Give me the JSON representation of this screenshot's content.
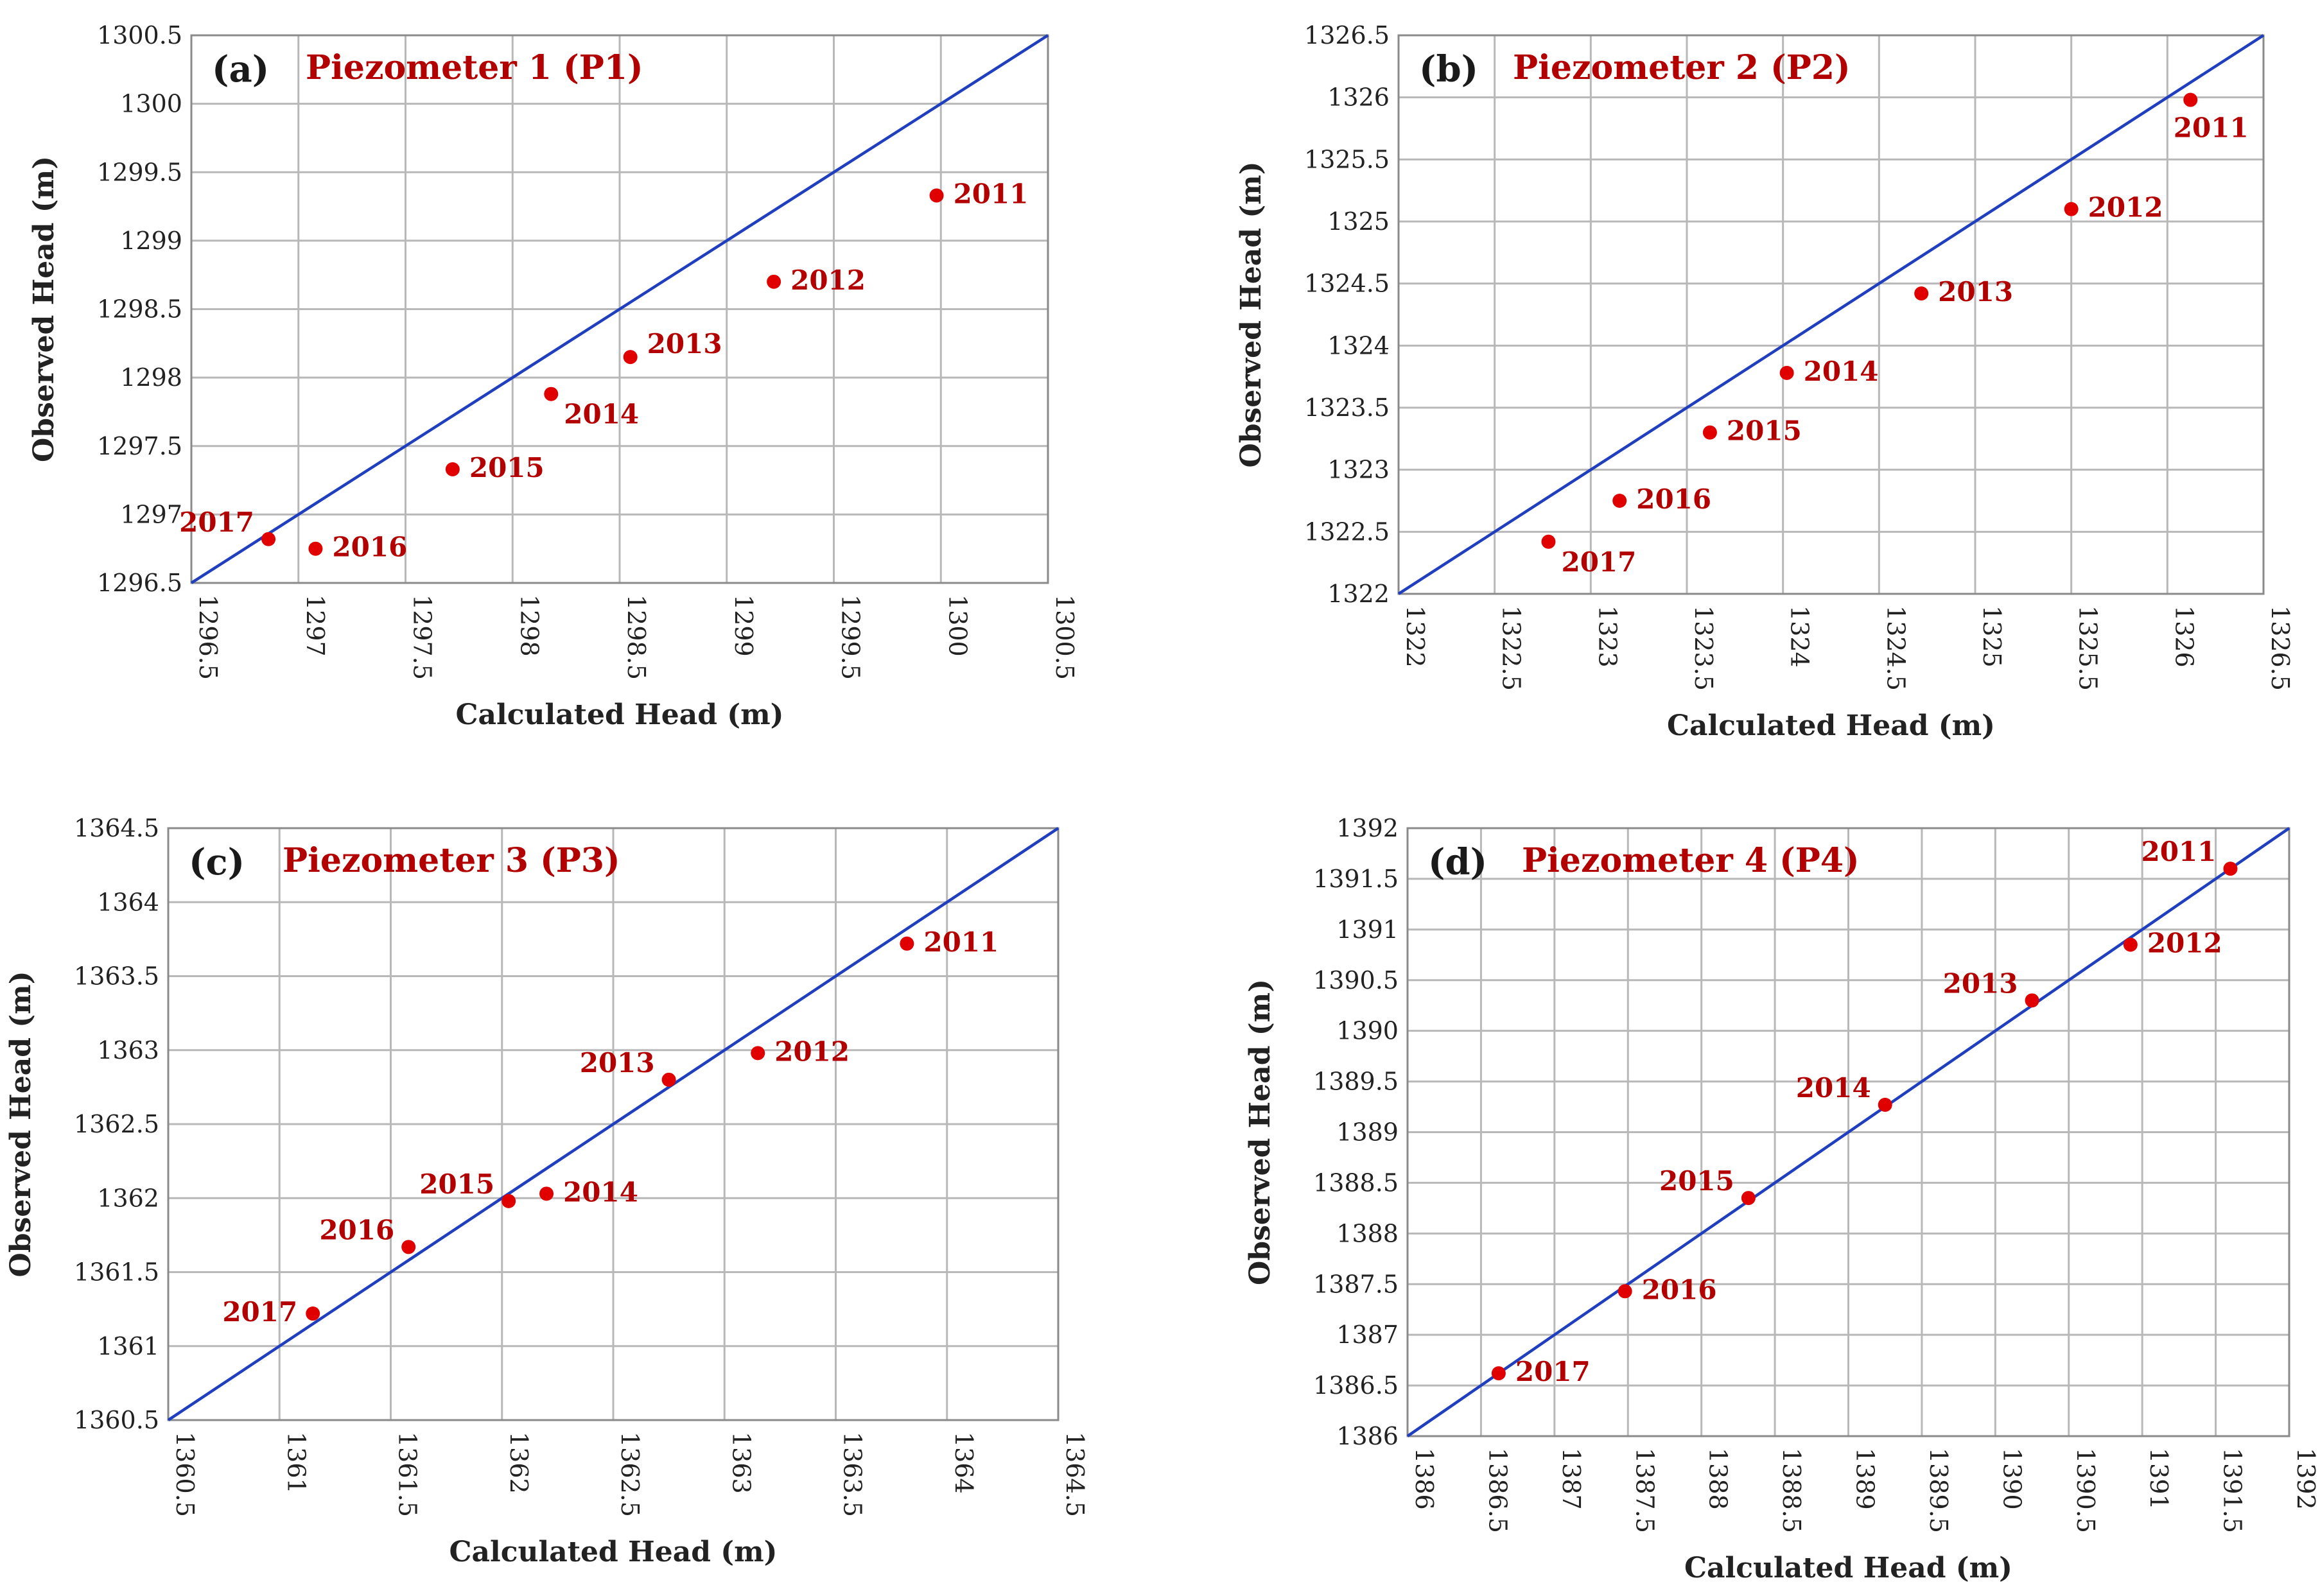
{
  "figure": {
    "colors": {
      "line": "#1f3fbf",
      "point": "#e00000",
      "title": "#b30000",
      "grid": "#b8b8b8"
    }
  },
  "chart_data": [
    {
      "type": "scatter",
      "panel": "(a)",
      "title": "Piezometer 1 (P1)",
      "xlabel": "Calculated Head (m)",
      "ylabel": "Observed Head (m)",
      "xlim": [
        1296.5,
        1300.5
      ],
      "ylim": [
        1296.5,
        1300.5
      ],
      "xticks": [
        "1296.5",
        "1297",
        "1297.5",
        "1298",
        "1298.5",
        "1299",
        "1299.5",
        "1300",
        "1300.5"
      ],
      "yticks": [
        "1296.5",
        "1297",
        "1297.5",
        "1298",
        "1298.5",
        "1299",
        "1299.5",
        "1300",
        "1300.5"
      ],
      "reference_line": "1:1",
      "points": [
        {
          "label": "2011",
          "x": 1299.98,
          "y": 1299.33,
          "pos": "right"
        },
        {
          "label": "2012",
          "x": 1299.22,
          "y": 1298.7,
          "pos": "right"
        },
        {
          "label": "2013",
          "x": 1298.55,
          "y": 1298.15,
          "pos": "right-up"
        },
        {
          "label": "2014",
          "x": 1298.18,
          "y": 1297.88,
          "pos": "right-down"
        },
        {
          "label": "2015",
          "x": 1297.72,
          "y": 1297.33,
          "pos": "right"
        },
        {
          "label": "2016",
          "x": 1297.08,
          "y": 1296.75,
          "pos": "right"
        },
        {
          "label": "2017",
          "x": 1296.86,
          "y": 1296.82,
          "pos": "left-up"
        }
      ]
    },
    {
      "type": "scatter",
      "panel": "(b)",
      "title": "Piezometer 2 (P2)",
      "xlabel": "Calculated Head (m)",
      "ylabel": "Observed Head (m)",
      "xlim": [
        1322,
        1326.5
      ],
      "ylim": [
        1322,
        1326.5
      ],
      "xticks": [
        "1322",
        "1322.5",
        "1323",
        "1323.5",
        "1324",
        "1324.5",
        "1325",
        "1325.5",
        "1326",
        "1326.5"
      ],
      "yticks": [
        "1322",
        "1322.5",
        "1323",
        "1323.5",
        "1324",
        "1324.5",
        "1325",
        "1325.5",
        "1326",
        "1326.5"
      ],
      "reference_line": "1:1",
      "points": [
        {
          "label": "2011",
          "x": 1326.12,
          "y": 1325.98,
          "pos": "below"
        },
        {
          "label": "2012",
          "x": 1325.5,
          "y": 1325.1,
          "pos": "right"
        },
        {
          "label": "2013",
          "x": 1324.72,
          "y": 1324.42,
          "pos": "right"
        },
        {
          "label": "2014",
          "x": 1324.02,
          "y": 1323.78,
          "pos": "right"
        },
        {
          "label": "2015",
          "x": 1323.62,
          "y": 1323.3,
          "pos": "right"
        },
        {
          "label": "2016",
          "x": 1323.15,
          "y": 1322.75,
          "pos": "right"
        },
        {
          "label": "2017",
          "x": 1322.78,
          "y": 1322.42,
          "pos": "right-down"
        }
      ]
    },
    {
      "type": "scatter",
      "panel": "(c)",
      "title": "Piezometer 3 (P3)",
      "xlabel": "Calculated Head (m)",
      "ylabel": "Observed Head (m)",
      "xlim": [
        1360.5,
        1364.5
      ],
      "ylim": [
        1360.5,
        1364.5
      ],
      "xticks": [
        "1360.5",
        "1361",
        "1361.5",
        "1362",
        "1362.5",
        "1363",
        "1363.5",
        "1364",
        "1364.5"
      ],
      "yticks": [
        "1360.5",
        "1361",
        "1361.5",
        "1362",
        "1362.5",
        "1363",
        "1363.5",
        "1364",
        "1364.5"
      ],
      "reference_line": "1:1",
      "points": [
        {
          "label": "2011",
          "x": 1363.82,
          "y": 1363.72,
          "pos": "right"
        },
        {
          "label": "2012",
          "x": 1363.15,
          "y": 1362.98,
          "pos": "right"
        },
        {
          "label": "2013",
          "x": 1362.75,
          "y": 1362.8,
          "pos": "left-up"
        },
        {
          "label": "2014",
          "x": 1362.2,
          "y": 1362.03,
          "pos": "right"
        },
        {
          "label": "2015",
          "x": 1362.03,
          "y": 1361.98,
          "pos": "left-up"
        },
        {
          "label": "2016",
          "x": 1361.58,
          "y": 1361.67,
          "pos": "left-up"
        },
        {
          "label": "2017",
          "x": 1361.15,
          "y": 1361.22,
          "pos": "left"
        }
      ]
    },
    {
      "type": "scatter",
      "panel": "(d)",
      "title": "Piezometer 4 (P4)",
      "xlabel": "Calculated Head (m)",
      "ylabel": "Observed Head (m)",
      "xlim": [
        1386,
        1392
      ],
      "ylim": [
        1386,
        1392
      ],
      "xticks": [
        "1386",
        "1386.5",
        "1387",
        "1387.5",
        "1388",
        "1388.5",
        "1389",
        "1389.5",
        "1390",
        "1390.5",
        "1391",
        "1391.5",
        "1392"
      ],
      "yticks": [
        "1386",
        "1386.5",
        "1387",
        "1387.5",
        "1388",
        "1388.5",
        "1389",
        "1389.5",
        "1390",
        "1390.5",
        "1391",
        "1391.5",
        "1392"
      ],
      "reference_line": "1:1",
      "points": [
        {
          "label": "2011",
          "x": 1391.6,
          "y": 1391.6,
          "pos": "left-up"
        },
        {
          "label": "2012",
          "x": 1390.92,
          "y": 1390.85,
          "pos": "right"
        },
        {
          "label": "2013",
          "x": 1390.25,
          "y": 1390.3,
          "pos": "left-up"
        },
        {
          "label": "2014",
          "x": 1389.25,
          "y": 1389.27,
          "pos": "left-up"
        },
        {
          "label": "2015",
          "x": 1388.32,
          "y": 1388.35,
          "pos": "left-up"
        },
        {
          "label": "2016",
          "x": 1387.48,
          "y": 1387.43,
          "pos": "right"
        },
        {
          "label": "2017",
          "x": 1386.62,
          "y": 1386.62,
          "pos": "right"
        }
      ]
    }
  ]
}
